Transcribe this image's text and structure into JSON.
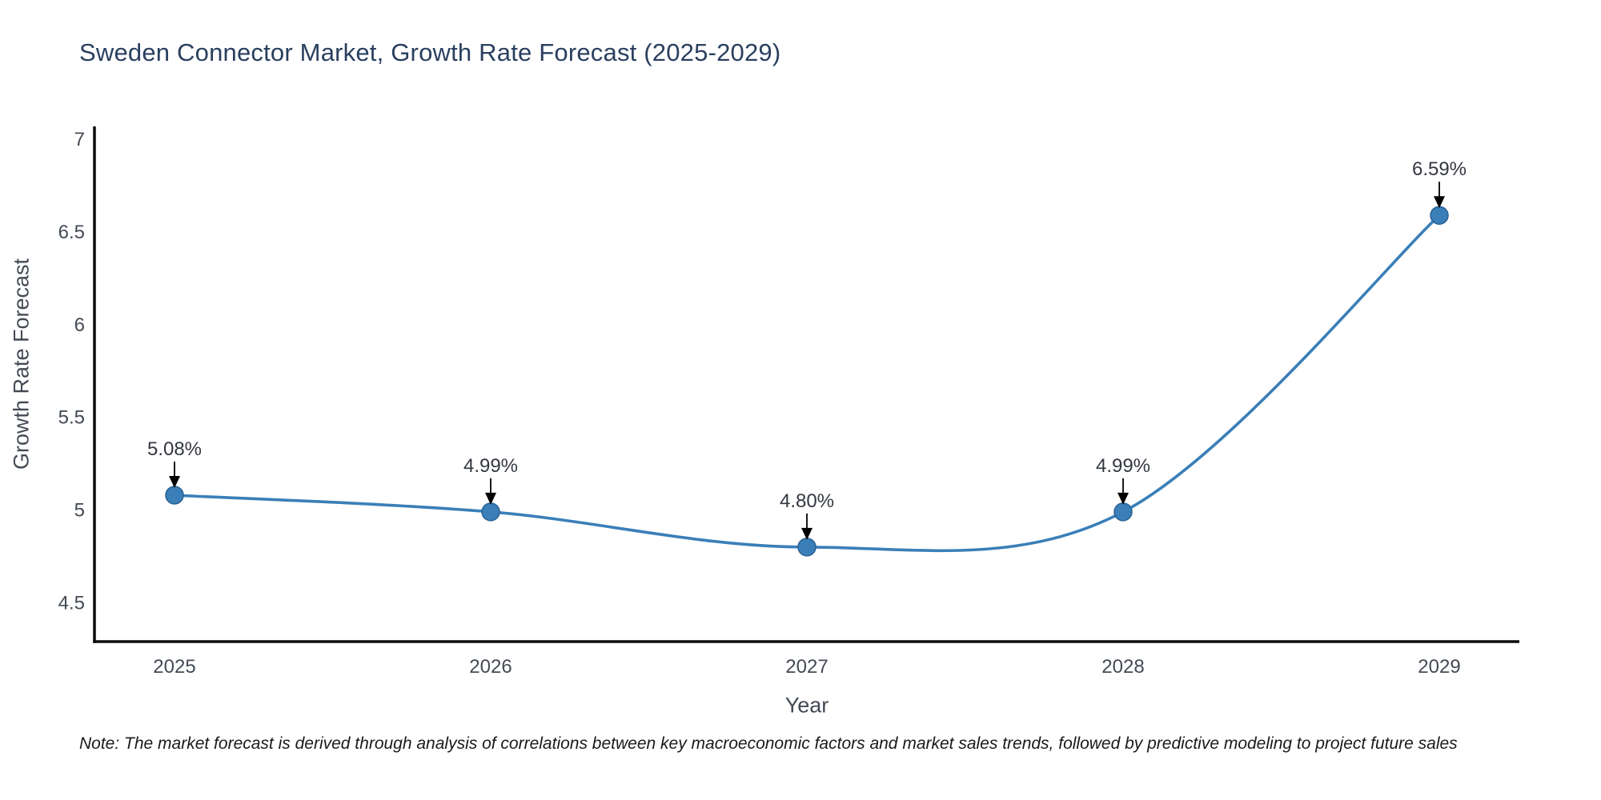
{
  "title": "Sweden Connector Market, Growth Rate Forecast (2025-2029)",
  "note": "Note: The market forecast is derived through analysis of correlations between key macroeconomic factors and market sales trends, followed by predictive modeling to project future sales",
  "chart_data": {
    "type": "line",
    "title": "Sweden Connector Market, Growth Rate Forecast (2025-2029)",
    "xlabel": "Year",
    "ylabel": "Growth Rate Forecast",
    "categories": [
      "2025",
      "2026",
      "2027",
      "2028",
      "2029"
    ],
    "series": [
      {
        "name": "Growth Rate Forecast",
        "values": [
          5.08,
          4.99,
          4.8,
          4.99,
          6.59
        ],
        "point_labels": [
          "5.08%",
          "4.99%",
          "4.80%",
          "4.99%",
          "6.59%"
        ]
      }
    ],
    "yticks": [
      "4.5",
      "5",
      "5.5",
      "6",
      "6.5",
      "7"
    ],
    "ytick_values": [
      4.5,
      5,
      5.5,
      6,
      6.5,
      7
    ],
    "ylim": [
      4.29,
      7.07
    ],
    "grid": false,
    "legend_position": "none",
    "line_shape": "spline",
    "colors": {
      "line": "#3a7fb8",
      "marker_fill": "#3a7fb8",
      "marker_edge": "#2b6193",
      "spine": "#0b0b0b",
      "tick_text": "#444a54",
      "annotation_text": "#333740",
      "annotation_arrow": "#000000",
      "title_text": "#2a3f5f",
      "note_text": "#1a1a1a"
    }
  }
}
